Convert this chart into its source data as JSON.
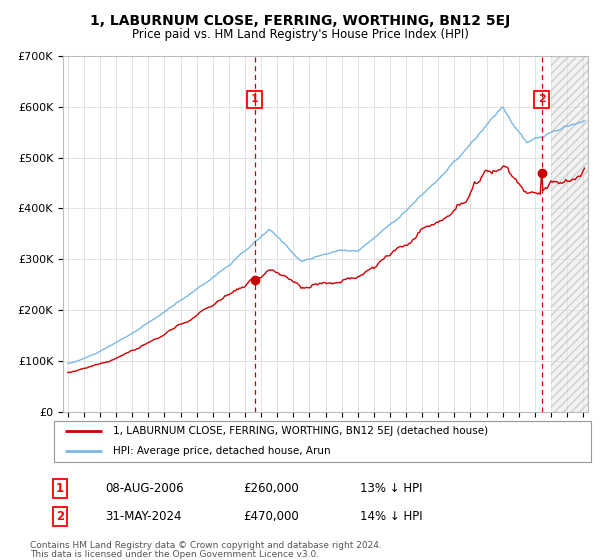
{
  "title": "1, LABURNUM CLOSE, FERRING, WORTHING, BN12 5EJ",
  "subtitle": "Price paid vs. HM Land Registry's House Price Index (HPI)",
  "ylim": [
    0,
    700000
  ],
  "yticks": [
    0,
    100000,
    200000,
    300000,
    400000,
    500000,
    600000,
    700000
  ],
  "ytick_labels": [
    "£0",
    "£100K",
    "£200K",
    "£300K",
    "£400K",
    "£500K",
    "£600K",
    "£700K"
  ],
  "sale1_year": 2006.6,
  "sale1_price": 260000,
  "sale1_label": "08-AUG-2006",
  "sale1_amount": "£260,000",
  "sale1_hpi_pct": "13% ↓ HPI",
  "sale2_year": 2024.42,
  "sale2_price": 470000,
  "sale2_label": "31-MAY-2024",
  "sale2_amount": "£470,000",
  "sale2_hpi_pct": "14% ↓ HPI",
  "line_color_hpi": "#7ab8e8",
  "line_color_price": "#cc0000",
  "vline_color": "#cc0000",
  "grid_color": "#dddddd",
  "background_color": "#ffffff",
  "legend_label1": "1, LABURNUM CLOSE, FERRING, WORTHING, BN12 5EJ (detached house)",
  "legend_label2": "HPI: Average price, detached house, Arun",
  "footer1": "Contains HM Land Registry data © Crown copyright and database right 2024.",
  "footer2": "This data is licensed under the Open Government Licence v3.0.",
  "xmin": 1995,
  "xmax": 2027,
  "hatch_start": 2025.0
}
